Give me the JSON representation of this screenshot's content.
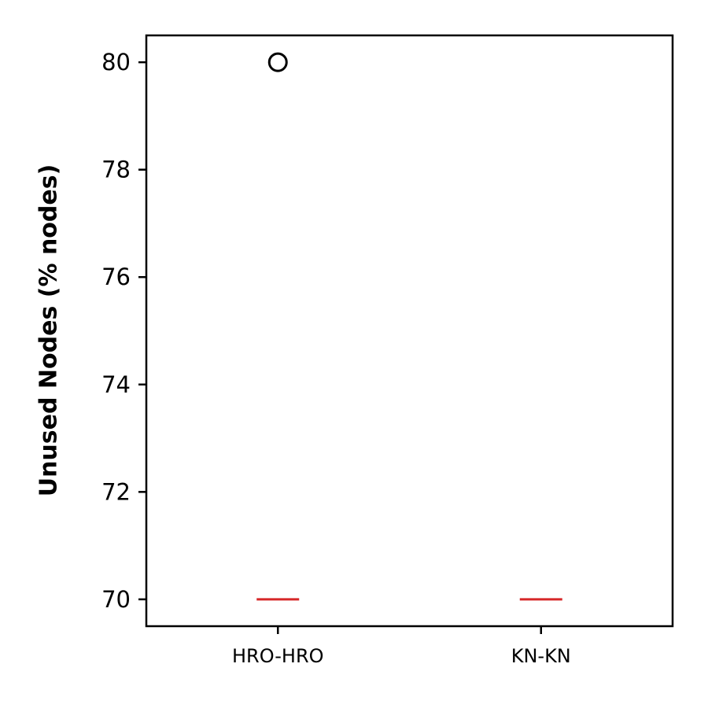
{
  "chart_data": {
    "type": "box",
    "title": "",
    "xlabel": "",
    "ylabel": "Unused Nodes (% nodes)",
    "categories": [
      "HRO-HRO",
      "KN-KN"
    ],
    "ylim": [
      69.5,
      80.5
    ],
    "yticks": [
      70,
      72,
      74,
      76,
      78,
      80
    ],
    "boxes": [
      {
        "category": "HRO-HRO",
        "median": 70,
        "q1": 70,
        "q3": 70,
        "whisker_low": 70,
        "whisker_high": 70,
        "outliers": [
          80
        ]
      },
      {
        "category": "KN-KN",
        "median": 70,
        "q1": 70,
        "q3": 70,
        "whisker_low": 70,
        "whisker_high": 70,
        "outliers": []
      }
    ],
    "grid": false,
    "colors": {
      "median": "#d62728",
      "outlier": "#000000",
      "axes": "#000000"
    }
  }
}
